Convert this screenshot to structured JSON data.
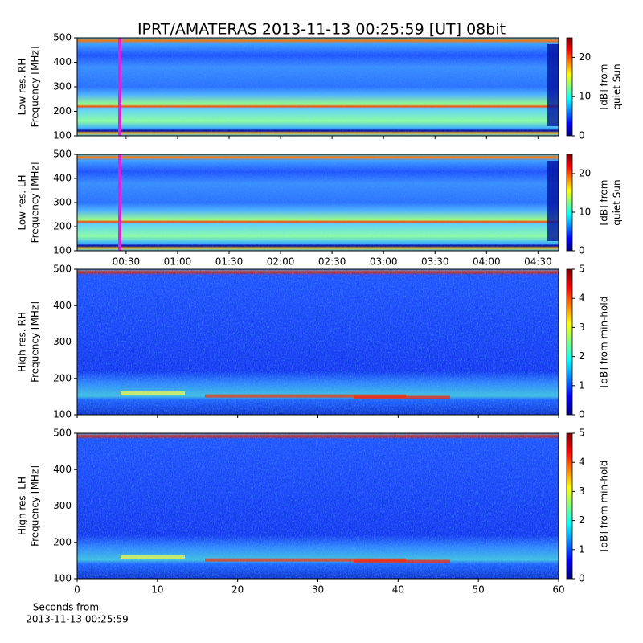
{
  "title": "IPRT/AMATERAS 2013-11-13 00:25:59 [UT]   08bit",
  "chart_data": [
    {
      "type": "heatmap",
      "ylabel": [
        "Low res. RH",
        "Frequency [MHz]"
      ],
      "ylim": [
        100,
        500
      ],
      "yticks": [
        100,
        200,
        300,
        400,
        500
      ],
      "xlim": [
        1.5,
        282
      ],
      "colorbar": {
        "label": [
          "[dB] from",
          "quiet Sun"
        ],
        "lim": [
          0,
          25
        ],
        "ticks": [
          0,
          10,
          20
        ]
      }
    },
    {
      "type": "heatmap",
      "ylabel": [
        "Low res. LH",
        "Frequency [MHz]"
      ],
      "ylim": [
        100,
        500
      ],
      "yticks": [
        100,
        200,
        300,
        400,
        500
      ],
      "xlim": [
        1.5,
        282
      ],
      "xticks": [
        {
          "value": 30,
          "label": "00:30"
        },
        {
          "value": 60,
          "label": "01:00"
        },
        {
          "value": 90,
          "label": "01:30"
        },
        {
          "value": 120,
          "label": "02:00"
        },
        {
          "value": 150,
          "label": "02:30"
        },
        {
          "value": 180,
          "label": "03:00"
        },
        {
          "value": 210,
          "label": "03:30"
        },
        {
          "value": 240,
          "label": "04:00"
        },
        {
          "value": 270,
          "label": "04:30"
        }
      ],
      "colorbar": {
        "label": [
          "[dB] from",
          "quiet Sun"
        ],
        "lim": [
          0,
          25
        ],
        "ticks": [
          0,
          10,
          20
        ]
      }
    },
    {
      "type": "heatmap",
      "ylabel": [
        "High res. RH",
        "Frequency [MHz]"
      ],
      "ylim": [
        100,
        500
      ],
      "yticks": [
        100,
        200,
        300,
        400,
        500
      ],
      "xlim": [
        0,
        60
      ],
      "colorbar": {
        "label": [
          "[dB] from min-hold"
        ],
        "lim": [
          0,
          5
        ],
        "ticks": [
          0,
          1,
          2,
          3,
          4,
          5
        ]
      }
    },
    {
      "type": "heatmap",
      "ylabel": [
        "High res. LH",
        "Frequency [MHz]"
      ],
      "ylim": [
        100,
        500
      ],
      "yticks": [
        100,
        200,
        300,
        400,
        500
      ],
      "xlim": [
        0,
        60
      ],
      "xticks": [
        0,
        10,
        20,
        30,
        40,
        50,
        60
      ],
      "xlabel": [
        "Seconds from",
        "2013-11-13 00:25:59"
      ],
      "colorbar": {
        "label": [
          "[dB] from min-hold"
        ],
        "lim": [
          0,
          5
        ],
        "ticks": [
          0,
          1,
          2,
          3,
          4,
          5
        ]
      }
    }
  ]
}
